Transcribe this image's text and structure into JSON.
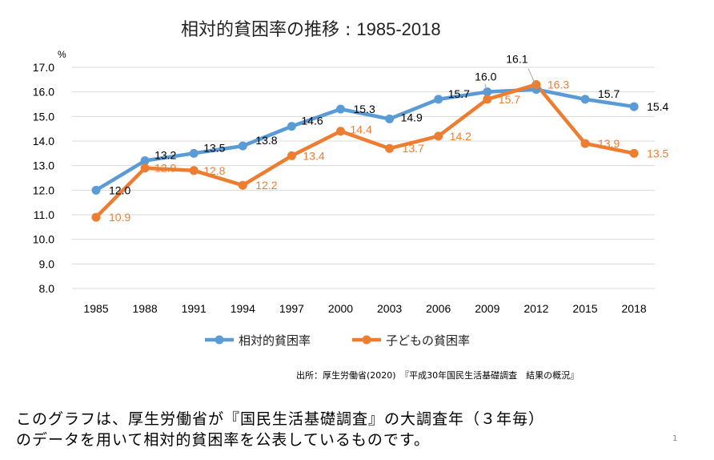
{
  "chart_data": {
    "type": "line",
    "title_jp": "相対的貧困率の推移 : ",
    "title_years": "1985-2018",
    "ylabel": "%",
    "ylim": [
      8.0,
      17.0
    ],
    "yticks": [
      "8.0",
      "9.0",
      "10.0",
      "11.0",
      "12.0",
      "13.0",
      "14.0",
      "15.0",
      "16.0",
      "17.0"
    ],
    "categories": [
      "1985",
      "1988",
      "1991",
      "1994",
      "1997",
      "2000",
      "2003",
      "2006",
      "2009",
      "2012",
      "2015",
      "2018"
    ],
    "series": [
      {
        "name": "相対的貧困率",
        "color": "#5b9bd5",
        "values": [
          12.0,
          13.2,
          13.5,
          13.8,
          14.6,
          15.3,
          14.9,
          15.7,
          16.0,
          16.1,
          15.7,
          15.4
        ],
        "labels": [
          "12.0",
          "13.2",
          "13.5",
          "13.8",
          "14.6",
          "15.3",
          "14.9",
          "15.7",
          "16.0",
          "16.1",
          "15.7",
          "15.4"
        ],
        "label_color": "#000000"
      },
      {
        "name": "子どもの貧困率",
        "color": "#ed7d31",
        "values": [
          10.9,
          12.9,
          12.8,
          12.2,
          13.4,
          14.4,
          13.7,
          14.2,
          15.7,
          16.3,
          13.9,
          13.5
        ],
        "labels": [
          "10.9",
          "12.9",
          "12.8",
          "12.2",
          "13.4",
          "14.4",
          "13.7",
          "14.2",
          "15.7",
          "16.3",
          "13.9",
          "13.5"
        ],
        "label_color": "#ed7d31"
      }
    ],
    "legend_position": "bottom",
    "grid": true
  },
  "source": "出所：厚生労働省(2020)　『平成30年国民生活基礎調査　結果の概況』",
  "caption_line1": "このグラフは、厚生労働省が『国民生活基礎調査』の大調査年（３年毎）",
  "caption_line2": "のデータを用いて相対的貧困率を公表しているものです。",
  "page_number": "1"
}
